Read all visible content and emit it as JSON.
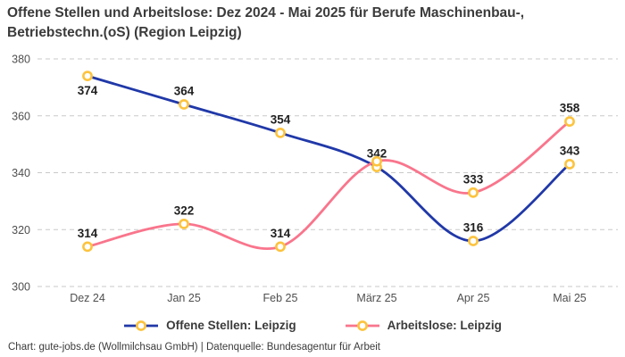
{
  "title": "Offene Stellen und Arbeitslose: Dez 2024 - Mai 2025 für Berufe Maschinenbau-, Betriebstechn.(oS) (Region Leipzig)",
  "footer": "Chart: gute-jobs.de (Wollmilchsau GmbH) | Datenquelle: Bundesagentur für Arbeit",
  "colors": {
    "title_text": "#3b3b3b",
    "axis_text": "#4f4f4f",
    "gridline": "#c9c9c9",
    "data_label": "#1f1f1f",
    "series_blue": "#2038a8",
    "series_pink": "#f9758c",
    "marker_stroke": "#fcc33d",
    "marker_fill": "#ffffff",
    "background": "#ffffff"
  },
  "chart_data": {
    "type": "line",
    "title": "Offene Stellen und Arbeitslose: Dez 2024 - Mai 2025 für Berufe Maschinenbau-, Betriebstechn.(oS) (Region Leipzig)",
    "categories": [
      "Dez 24",
      "Jan 25",
      "Feb 25",
      "März 25",
      "Apr 25",
      "Mai 25"
    ],
    "series": [
      {
        "name": "Offene Stellen: Leipzig",
        "color": "#2038a8",
        "values": [
          374,
          364,
          354,
          342,
          316,
          343
        ],
        "labels": [
          "374",
          "364",
          "354",
          "342",
          "316",
          "343"
        ],
        "label_pos": [
          "below",
          "above",
          "above",
          "above",
          "above",
          "above"
        ]
      },
      {
        "name": "Arbeitslose: Leipzig",
        "color": "#f9758c",
        "values": [
          314,
          322,
          314,
          344,
          333,
          358
        ],
        "labels": [
          "314",
          "322",
          "314",
          "",
          "333",
          "358"
        ],
        "label_pos": [
          "above",
          "above",
          "above",
          "above",
          "above",
          "above"
        ]
      }
    ],
    "ylim": [
      300,
      380
    ],
    "yticks": [
      300,
      320,
      340,
      360,
      380
    ],
    "xlabel": "",
    "ylabel": "",
    "grid": "horizontal-dashed",
    "legend_position": "bottom",
    "line_style": "smooth",
    "marker": "ring"
  }
}
